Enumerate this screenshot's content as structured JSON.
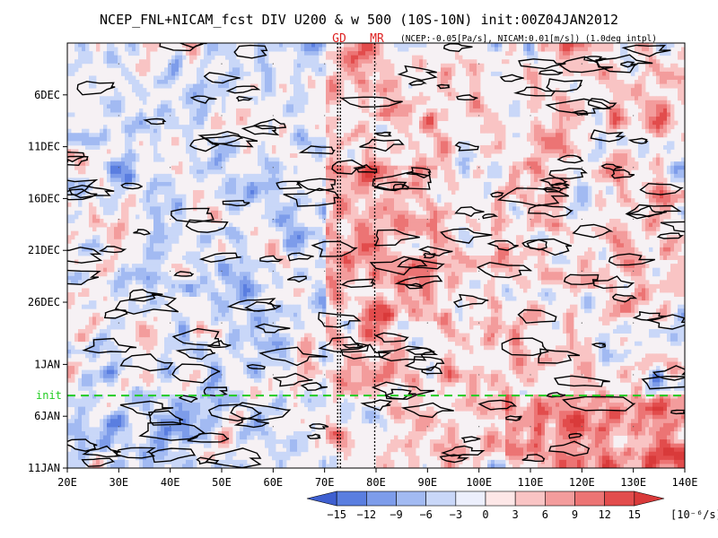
{
  "chart_data": {
    "type": "heatmap",
    "title": "NCEP_FNL+NICAM_fcst DIV U200 & w 500 (10S-10N) init:00Z04JAN2012",
    "subtitle": "(NCEP:-0.05[Pa/s], NICAM:0.01[m/s]) (1.0deg intpl)",
    "x_ticks": [
      "20E",
      "30E",
      "40E",
      "50E",
      "60E",
      "70E",
      "80E",
      "90E",
      "100E",
      "110E",
      "120E",
      "130E",
      "140E"
    ],
    "x_tick_values": [
      20,
      30,
      40,
      50,
      60,
      70,
      80,
      90,
      100,
      110,
      120,
      130,
      140
    ],
    "xlim": [
      20,
      140
    ],
    "y_ticks": [
      "6DEC",
      "11DEC",
      "16DEC",
      "21DEC",
      "26DEC",
      "1JAN",
      "6JAN",
      "11JAN"
    ],
    "y_tick_days": [
      5,
      10,
      15,
      20,
      25,
      31,
      36,
      41
    ],
    "ylim_days": [
      0,
      41
    ],
    "init_label": "init",
    "init_day": 34,
    "markers": [
      {
        "label": "GD",
        "lon": 72.8
      },
      {
        "label": "MR",
        "lon": 80.0
      }
    ],
    "colorbar": {
      "labels": [
        "−15",
        "−12",
        "−9",
        "−6",
        "−3",
        "0",
        "3",
        "6",
        "9",
        "12",
        "15"
      ],
      "values": [
        -15,
        -12,
        -9,
        -6,
        -3,
        0,
        3,
        6,
        9,
        12,
        15
      ],
      "units": "[10⁻⁶/s]",
      "colors": [
        "#3e5fd0",
        "#5a7ee0",
        "#7d9cea",
        "#a2baf2",
        "#c9d7f8",
        "#eceffc",
        "#fde7e7",
        "#f9c4c4",
        "#f39c9c",
        "#ec7474",
        "#e24c4c",
        "#d93a3a"
      ]
    }
  },
  "colors": {
    "init_line": "#22cc22",
    "marker_text": "#dd2222",
    "contour": "#000000"
  }
}
